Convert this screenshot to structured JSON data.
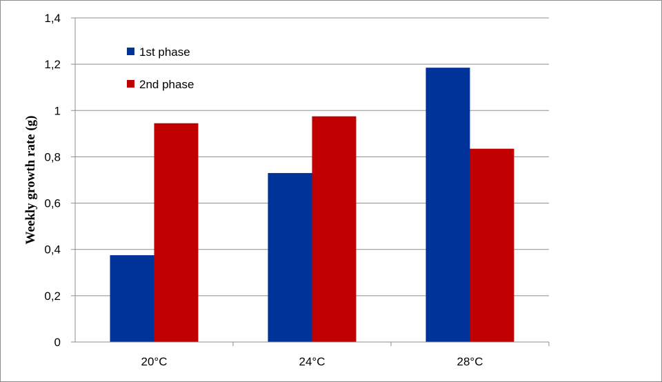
{
  "chart_data": {
    "type": "bar",
    "title": "",
    "xlabel": "",
    "ylabel": "Weekly growth rate (g)",
    "categories": [
      "20°C",
      "24°C",
      "28°C"
    ],
    "series": [
      {
        "name": "1st phase",
        "color": "#003399",
        "values": [
          0.375,
          0.73,
          1.185
        ]
      },
      {
        "name": "2nd phase",
        "color": "#c00000",
        "values": [
          0.945,
          0.975,
          0.835
        ]
      }
    ],
    "ylim": [
      0,
      1.4
    ],
    "yticks": [
      "0",
      "0,2",
      "0,4",
      "0,6",
      "0,8",
      "1",
      "1,2",
      "1,4"
    ],
    "grid": true,
    "legend": "top-left"
  }
}
